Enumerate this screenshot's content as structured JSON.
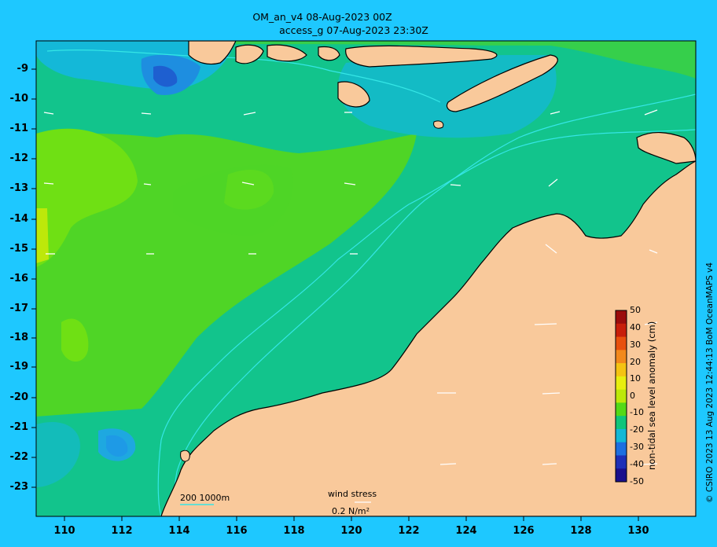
{
  "title": {
    "line1": "OM_an_v4  08-Aug-2023 00Z",
    "line2": "access_g 07-Aug-2023 23:30Z"
  },
  "axes": {
    "y_ticks": [
      "-9",
      "-10",
      "-11",
      "-12",
      "-13",
      "-14",
      "-15",
      "-16",
      "-17",
      "-18",
      "-19",
      "-20",
      "-21",
      "-22",
      "-23"
    ],
    "x_ticks": [
      "110",
      "112",
      "114",
      "116",
      "118",
      "120",
      "122",
      "124",
      "126",
      "128",
      "130"
    ]
  },
  "colorbar": {
    "label": "non-tidal sea level anomaly (cm)",
    "ticks": [
      "50",
      "40",
      "30",
      "20",
      "10",
      "0",
      "-10",
      "-20",
      "-30",
      "-40",
      "-50"
    ],
    "colors": [
      "#9b0c0c",
      "#c81e0a",
      "#e8500e",
      "#f2891c",
      "#f4c313",
      "#e8ee10",
      "#bde80a",
      "#54d916",
      "#10c57a",
      "#13b8d6",
      "#1e6fe0",
      "#1e2fb7",
      "#1a0f8c"
    ]
  },
  "legend": {
    "wind_stress_label": "wind stress",
    "wind_stress_value": "0.2 N/m²",
    "depth_label": "200  1000m"
  },
  "credit": "© CSIRO 2023   13 Aug 2023 12:44:13 BoM OceanMAPS v4",
  "colors": {
    "background": "#1ec8ff",
    "land": "#f9c99b",
    "ocean_base": "#12c48c",
    "positive_anomaly": "#7ae014",
    "negative_anomaly": "#14b8d8"
  }
}
